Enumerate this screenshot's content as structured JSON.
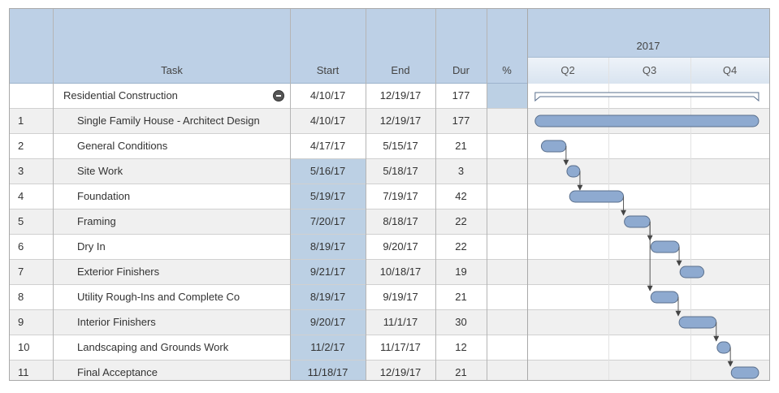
{
  "header": {
    "task_label": "Task",
    "start_label": "Start",
    "end_label": "End",
    "dur_label": "Dur",
    "pct_label": "%",
    "year": "2017",
    "quarters": [
      "Q2",
      "Q3",
      "Q4"
    ]
  },
  "summary": {
    "name": "Residential Construction",
    "start": "4/10/17",
    "end": "12/19/17",
    "dur": "177"
  },
  "tasks": [
    {
      "id": "1",
      "name": "Single Family House - Architect Design",
      "start": "4/10/17",
      "end": "12/19/17",
      "dur": "177",
      "highlight": false
    },
    {
      "id": "2",
      "name": "General Conditions",
      "start": "4/17/17",
      "end": "5/15/17",
      "dur": "21",
      "highlight": false
    },
    {
      "id": "3",
      "name": "Site Work",
      "start": "5/16/17",
      "end": "5/18/17",
      "dur": "3",
      "highlight": true
    },
    {
      "id": "4",
      "name": "Foundation",
      "start": "5/19/17",
      "end": "7/19/17",
      "dur": "42",
      "highlight": true
    },
    {
      "id": "5",
      "name": "Framing",
      "start": "7/20/17",
      "end": "8/18/17",
      "dur": "22",
      "highlight": true
    },
    {
      "id": "6",
      "name": "Dry In",
      "start": "8/19/17",
      "end": "9/20/17",
      "dur": "22",
      "highlight": true
    },
    {
      "id": "7",
      "name": "Exterior Finishers",
      "start": "9/21/17",
      "end": "10/18/17",
      "dur": "19",
      "highlight": true
    },
    {
      "id": "8",
      "name": "Utility Rough-Ins and Complete Co",
      "start": "8/19/17",
      "end": "9/19/17",
      "dur": "21",
      "highlight": true
    },
    {
      "id": "9",
      "name": "Interior Finishers",
      "start": "9/20/17",
      "end": "11/1/17",
      "dur": "30",
      "highlight": true
    },
    {
      "id": "10",
      "name": "Landscaping and Grounds Work",
      "start": "11/2/17",
      "end": "11/17/17",
      "dur": "12",
      "highlight": true
    },
    {
      "id": "11",
      "name": "Final Acceptance",
      "start": "11/18/17",
      "end": "12/19/17",
      "dur": "21",
      "highlight": true
    }
  ],
  "chart_data": {
    "type": "gantt",
    "year": "2017",
    "quarters": [
      "Q2",
      "Q3",
      "Q4"
    ],
    "axis_range": [
      "2017-04-01",
      "2017-12-31"
    ],
    "summary_bar": {
      "start": "2017-04-10",
      "end": "2017-12-19"
    },
    "bars": [
      {
        "id": "1",
        "start": "2017-04-10",
        "end": "2017-12-19"
      },
      {
        "id": "2",
        "start": "2017-04-17",
        "end": "2017-05-15"
      },
      {
        "id": "3",
        "start": "2017-05-16",
        "end": "2017-05-18"
      },
      {
        "id": "4",
        "start": "2017-05-19",
        "end": "2017-07-19"
      },
      {
        "id": "5",
        "start": "2017-07-20",
        "end": "2017-08-18"
      },
      {
        "id": "6",
        "start": "2017-08-19",
        "end": "2017-09-20"
      },
      {
        "id": "7",
        "start": "2017-09-21",
        "end": "2017-10-18"
      },
      {
        "id": "8",
        "start": "2017-08-19",
        "end": "2017-09-19"
      },
      {
        "id": "9",
        "start": "2017-09-20",
        "end": "2017-11-01"
      },
      {
        "id": "10",
        "start": "2017-11-02",
        "end": "2017-11-17"
      },
      {
        "id": "11",
        "start": "2017-11-18",
        "end": "2017-12-19"
      }
    ],
    "dependencies": [
      [
        "2",
        "3"
      ],
      [
        "3",
        "4"
      ],
      [
        "4",
        "5"
      ],
      [
        "5",
        "6"
      ],
      [
        "6",
        "7"
      ],
      [
        "5",
        "8"
      ],
      [
        "8",
        "9"
      ],
      [
        "9",
        "10"
      ],
      [
        "10",
        "11"
      ]
    ],
    "colors": {
      "bar_fill": "#8eaad0",
      "bar_stroke": "#5a6f8c",
      "header": "#bdd0e6",
      "highlight": "#bcd0e4",
      "alt_row": "#f0f0f0"
    }
  }
}
